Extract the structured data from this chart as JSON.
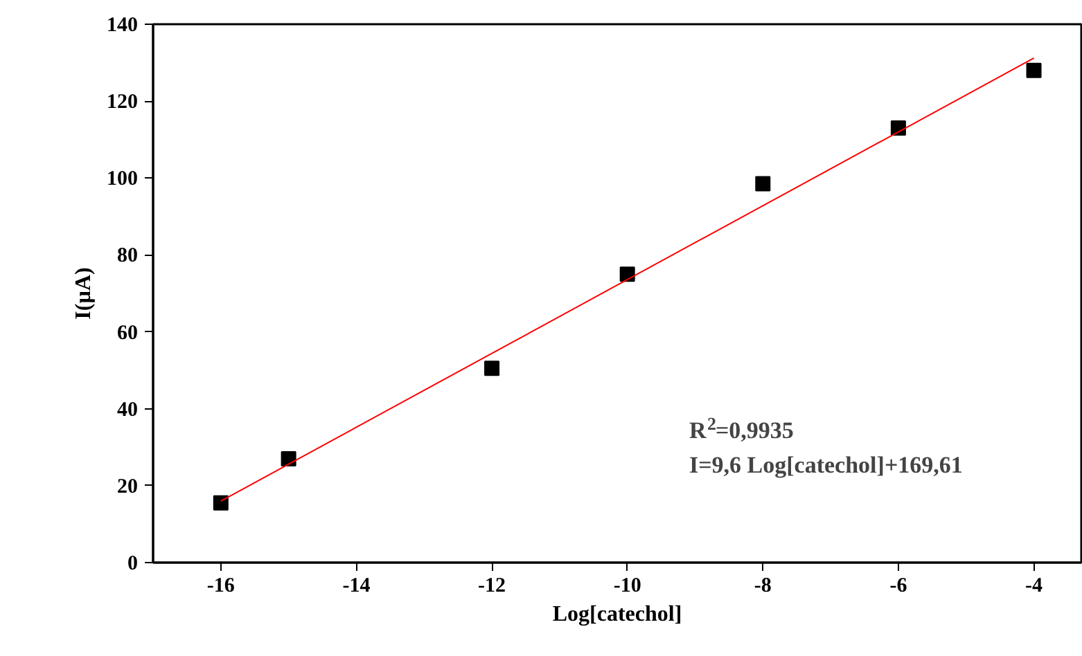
{
  "chart_data": {
    "type": "scatter",
    "xlabel": "Log[catechol]",
    "ylabel": "I(µA)",
    "x": [
      -16,
      -15,
      -12,
      -10,
      -8,
      -6,
      -4
    ],
    "series": [
      {
        "color": "#000000",
        "marker": "square",
        "values": [
          15.5,
          27,
          50.5,
          75,
          98.5,
          113,
          128
        ]
      },
      {
        "type": "line",
        "color": "#ff0000",
        "x": [
          -16,
          -4
        ],
        "values": [
          16.0,
          131.2
        ]
      }
    ],
    "annotations": [
      "R$^{2}$=0,9935",
      "I=9,6 Log[catechol]+169,61"
    ],
    "xlim": [
      -17,
      -3.3
    ],
    "ylim": [
      0,
      140
    ],
    "xticks": [
      -16,
      -14,
      -12,
      -10,
      -8,
      -6,
      -4
    ],
    "yticks": [
      0,
      20,
      40,
      60,
      80,
      100,
      120,
      140
    ],
    "grid": false
  }
}
